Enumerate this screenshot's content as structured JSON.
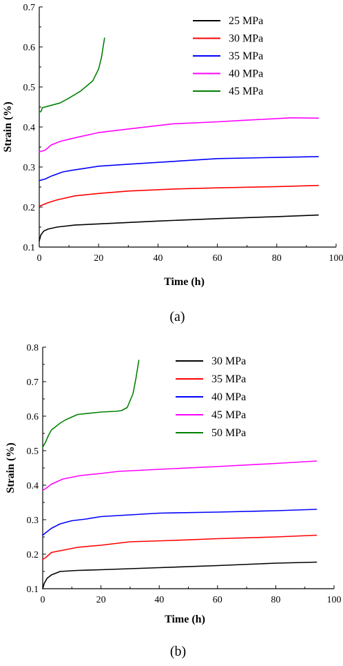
{
  "chart_data": [
    {
      "type": "line",
      "panel_label": "(a)",
      "xlabel": "Time (h)",
      "ylabel": "Strain (%)",
      "xlim": [
        0,
        100
      ],
      "ylim": [
        0.1,
        0.7
      ],
      "xticks": [
        "0",
        "20",
        "40",
        "60",
        "80",
        "100"
      ],
      "yticks": [
        "0.1",
        "0.2",
        "0.3",
        "0.4",
        "0.5",
        "0.6",
        "0.7"
      ],
      "legend_position": "top-right",
      "grid": false,
      "series": [
        {
          "name": "25 MPa",
          "color": "#000000",
          "points": [
            [
              0,
              0.115
            ],
            [
              0.5,
              0.13
            ],
            [
              1.5,
              0.14
            ],
            [
              3,
              0.145
            ],
            [
              6,
              0.15
            ],
            [
              12,
              0.155
            ],
            [
              20,
              0.158
            ],
            [
              40,
              0.165
            ],
            [
              60,
              0.171
            ],
            [
              80,
              0.176
            ],
            [
              94,
              0.18
            ]
          ]
        },
        {
          "name": "30 MPa",
          "color": "#ff0000",
          "points": [
            [
              0,
              0.202
            ],
            [
              1,
              0.205
            ],
            [
              3,
              0.211
            ],
            [
              6,
              0.218
            ],
            [
              12,
              0.228
            ],
            [
              20,
              0.234
            ],
            [
              30,
              0.24
            ],
            [
              45,
              0.245
            ],
            [
              60,
              0.248
            ],
            [
              80,
              0.251
            ],
            [
              94,
              0.254
            ]
          ]
        },
        {
          "name": "35 MPa",
          "color": "#0000ff",
          "points": [
            [
              0,
              0.266
            ],
            [
              2,
              0.27
            ],
            [
              4,
              0.277
            ],
            [
              8,
              0.288
            ],
            [
              12,
              0.293
            ],
            [
              20,
              0.302
            ],
            [
              30,
              0.307
            ],
            [
              45,
              0.314
            ],
            [
              60,
              0.321
            ],
            [
              80,
              0.324
            ],
            [
              94,
              0.326
            ]
          ]
        },
        {
          "name": "40 MPa",
          "color": "#ff00ff",
          "points": [
            [
              0,
              0.338
            ],
            [
              2,
              0.342
            ],
            [
              4,
              0.355
            ],
            [
              7,
              0.364
            ],
            [
              12,
              0.373
            ],
            [
              20,
              0.386
            ],
            [
              30,
              0.395
            ],
            [
              45,
              0.408
            ],
            [
              60,
              0.413
            ],
            [
              70,
              0.417
            ],
            [
              85,
              0.423
            ],
            [
              94,
              0.422
            ]
          ]
        },
        {
          "name": "45 MPa",
          "color": "#008000",
          "points": [
            [
              0,
              0.436
            ],
            [
              0.7,
              0.44
            ],
            [
              1,
              0.448
            ],
            [
              3,
              0.452
            ],
            [
              7,
              0.46
            ],
            [
              10,
              0.472
            ],
            [
              14,
              0.49
            ],
            [
              18,
              0.515
            ],
            [
              20,
              0.545
            ],
            [
              21,
              0.575
            ],
            [
              21.5,
              0.6
            ],
            [
              22,
              0.622
            ]
          ]
        }
      ]
    },
    {
      "type": "line",
      "panel_label": "(b)",
      "xlabel": "Time (h)",
      "ylabel": "Strain (%)",
      "xlim": [
        0,
        100
      ],
      "ylim": [
        0.1,
        0.8
      ],
      "xticks": [
        "0",
        "20",
        "40",
        "60",
        "80",
        "100"
      ],
      "yticks": [
        "0.1",
        "0.2",
        "0.3",
        "0.4",
        "0.5",
        "0.6",
        "0.7",
        "0.8"
      ],
      "legend_position": "top-right",
      "grid": false,
      "series": [
        {
          "name": "30 MPa",
          "color": "#000000",
          "points": [
            [
              0,
              0.1
            ],
            [
              0.5,
              0.115
            ],
            [
              1.5,
              0.13
            ],
            [
              3,
              0.14
            ],
            [
              6,
              0.15
            ],
            [
              12,
              0.153
            ],
            [
              20,
              0.155
            ],
            [
              40,
              0.161
            ],
            [
              60,
              0.167
            ],
            [
              80,
              0.174
            ],
            [
              94,
              0.177
            ]
          ]
        },
        {
          "name": "35 MPa",
          "color": "#ff0000",
          "points": [
            [
              0,
              0.185
            ],
            [
              1,
              0.19
            ],
            [
              3,
              0.205
            ],
            [
              6,
              0.21
            ],
            [
              12,
              0.22
            ],
            [
              20,
              0.226
            ],
            [
              30,
              0.236
            ],
            [
              45,
              0.24
            ],
            [
              60,
              0.245
            ],
            [
              80,
              0.25
            ],
            [
              94,
              0.255
            ]
          ]
        },
        {
          "name": "40 MPa",
          "color": "#0000ff",
          "points": [
            [
              0,
              0.255
            ],
            [
              1,
              0.262
            ],
            [
              3,
              0.275
            ],
            [
              6,
              0.288
            ],
            [
              10,
              0.297
            ],
            [
              15,
              0.302
            ],
            [
              20,
              0.309
            ],
            [
              30,
              0.314
            ],
            [
              40,
              0.319
            ],
            [
              60,
              0.322
            ],
            [
              80,
              0.326
            ],
            [
              94,
              0.33
            ]
          ]
        },
        {
          "name": "45 MPa",
          "color": "#ff00ff",
          "points": [
            [
              0,
              0.385
            ],
            [
              1,
              0.39
            ],
            [
              3,
              0.403
            ],
            [
              7,
              0.418
            ],
            [
              13,
              0.428
            ],
            [
              20,
              0.434
            ],
            [
              26,
              0.44
            ],
            [
              40,
              0.446
            ],
            [
              60,
              0.454
            ],
            [
              80,
              0.463
            ],
            [
              94,
              0.47
            ]
          ]
        },
        {
          "name": "50 MPa",
          "color": "#008000",
          "points": [
            [
              0,
              0.51
            ],
            [
              1,
              0.525
            ],
            [
              2,
              0.545
            ],
            [
              3,
              0.56
            ],
            [
              6,
              0.58
            ],
            [
              8,
              0.59
            ],
            [
              12,
              0.605
            ],
            [
              20,
              0.612
            ],
            [
              25,
              0.614
            ],
            [
              27,
              0.616
            ],
            [
              29,
              0.625
            ],
            [
              31,
              0.665
            ],
            [
              32,
              0.71
            ],
            [
              33,
              0.762
            ]
          ]
        }
      ]
    }
  ]
}
